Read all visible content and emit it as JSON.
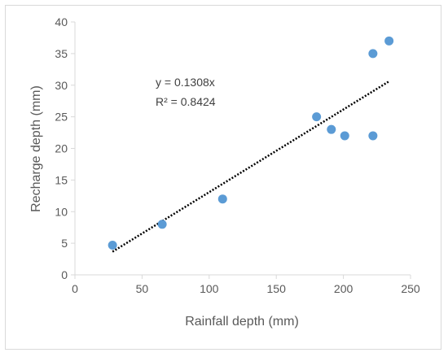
{
  "chart_data": {
    "type": "scatter",
    "xlabel": "Rainfall depth (mm)",
    "ylabel": "Recharge depth (mm)",
    "xlim": [
      0,
      250
    ],
    "ylim": [
      0,
      40
    ],
    "x_ticks": [
      0,
      50,
      100,
      150,
      200,
      250
    ],
    "y_ticks": [
      0,
      5,
      10,
      15,
      20,
      25,
      30,
      35,
      40
    ],
    "grid": false,
    "series": [
      {
        "color": "#5b9bd5",
        "points": [
          {
            "x": 28,
            "y": 4.7
          },
          {
            "x": 65,
            "y": 8
          },
          {
            "x": 110,
            "y": 12
          },
          {
            "x": 180,
            "y": 25
          },
          {
            "x": 191,
            "y": 23
          },
          {
            "x": 201,
            "y": 22
          },
          {
            "x": 222,
            "y": 22
          },
          {
            "x": 222,
            "y": 35
          },
          {
            "x": 234,
            "y": 37
          }
        ]
      }
    ],
    "trendline": {
      "style": "dotted",
      "color": "#000000",
      "slope": 0.1308,
      "x_range": [
        28,
        234
      ],
      "equation": "y = 0.1308x",
      "r_squared": "R² = 0.8424"
    }
  }
}
